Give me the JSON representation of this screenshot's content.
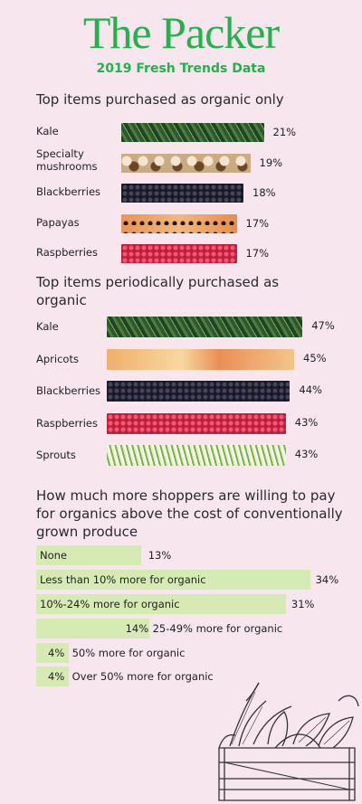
{
  "header": {
    "brand": "The Packer",
    "subtitle": "2019 Fresh Trends Data"
  },
  "colors": {
    "brand": "#22b24c",
    "bar_green": "#d5ebb3",
    "background": "#f8e6ee"
  },
  "chart_data": [
    {
      "type": "bar",
      "orientation": "horizontal",
      "title": "Top items purchased as organic only",
      "categories": [
        "Kale",
        "Specialty mushrooms",
        "Blackberries",
        "Papayas",
        "Raspberries"
      ],
      "values": [
        21,
        19,
        18,
        17,
        17
      ],
      "value_labels": [
        "21%",
        "19%",
        "18%",
        "17%",
        "17%"
      ],
      "unit": "%",
      "bar_fill": [
        "kale-image",
        "mushroom-image",
        "blackberry-image",
        "papaya-image",
        "raspberry-image"
      ]
    },
    {
      "type": "bar",
      "orientation": "horizontal",
      "title": "Top items periodically purchased as organic",
      "categories": [
        "Kale",
        "Apricots",
        "Blackberries",
        "Raspberries",
        "Sprouts"
      ],
      "values": [
        47,
        45,
        44,
        43,
        43
      ],
      "value_labels": [
        "47%",
        "45%",
        "44%",
        "43%",
        "43%"
      ],
      "unit": "%",
      "bar_fill": [
        "kale-image",
        "apricot-image",
        "blackberry-image",
        "raspberry-image",
        "sprouts-image"
      ]
    },
    {
      "type": "bar",
      "orientation": "horizontal",
      "title": "How much more shoppers are willing to pay for organics above the cost of conventionally grown produce",
      "categories": [
        "None",
        "Less than 10% more for organic",
        "10%-24% more for organic",
        "25-49% more for organic",
        "50% more for organic",
        "Over 50% more for organic"
      ],
      "values": [
        13,
        34,
        31,
        14,
        4,
        4
      ],
      "value_labels": [
        "13%",
        "34%",
        "31%",
        "14%",
        "4%",
        "4%"
      ],
      "unit": "%"
    }
  ]
}
